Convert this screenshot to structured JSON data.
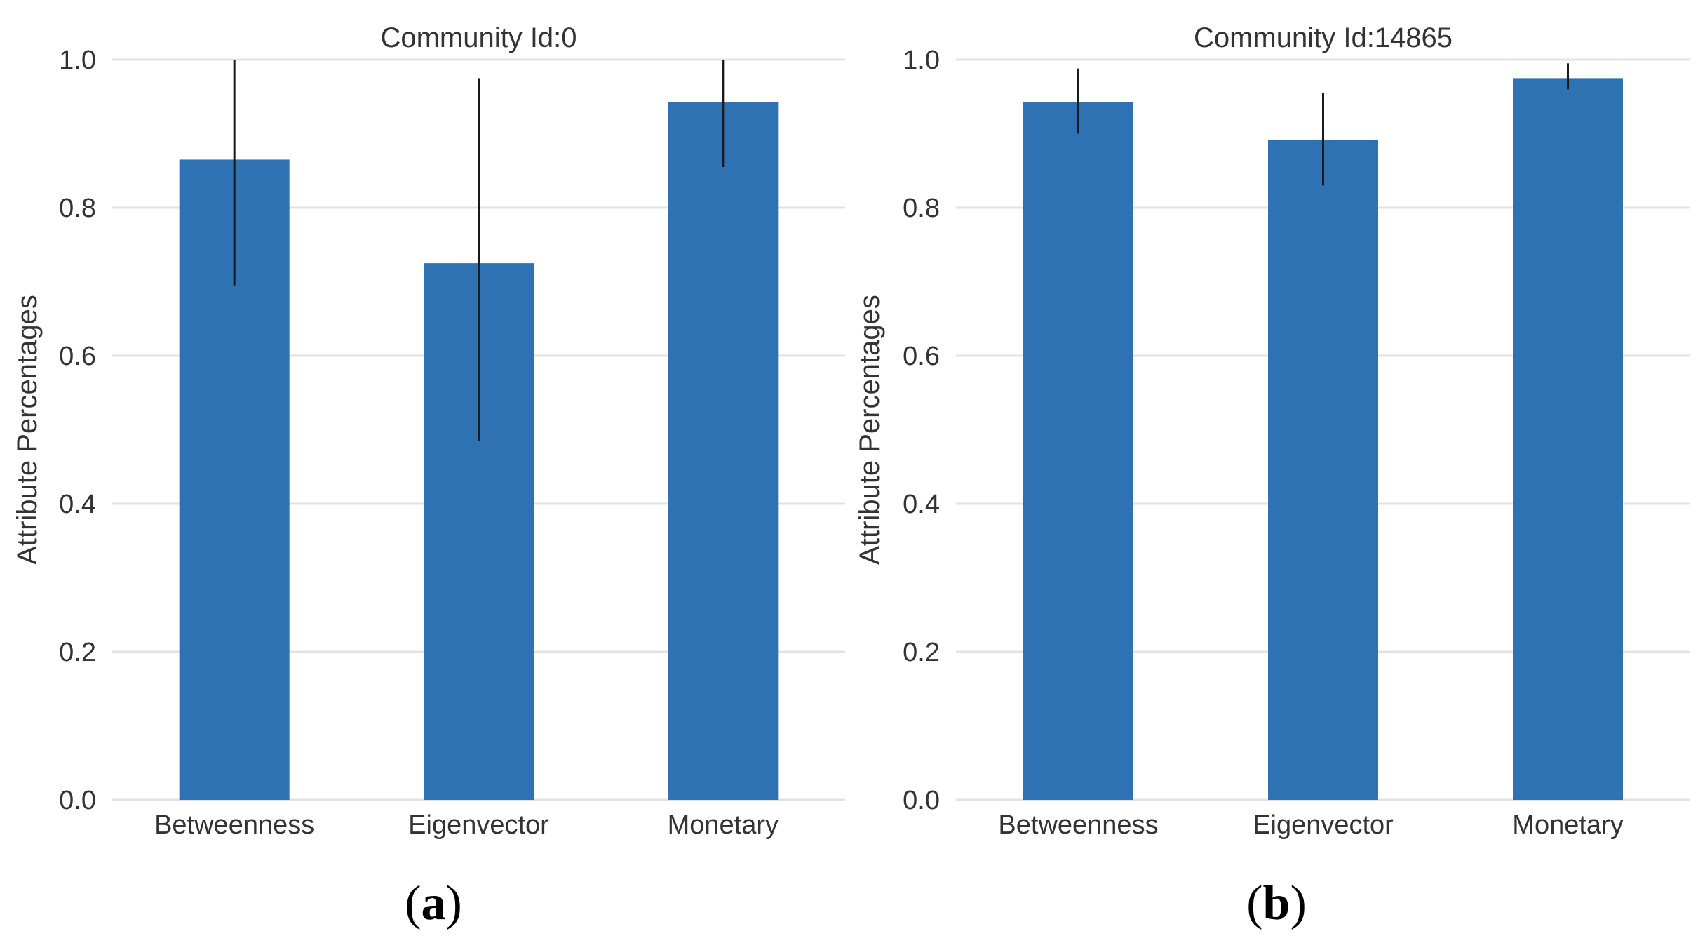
{
  "bar_color": "#2e72b3",
  "grid_color": "#e3e3e3",
  "error_color": "#1a1a1a",
  "chart_data": [
    {
      "type": "bar",
      "panel": "a",
      "title": "Community Id:0",
      "xlabel": "",
      "ylabel": "Attribute Percentages",
      "ylim": [
        0,
        1.0
      ],
      "yticks": [
        "0.0",
        "0.2",
        "0.4",
        "0.6",
        "0.8",
        "1.0"
      ],
      "categories": [
        "Betweenness",
        "Eigenvector",
        "Monetary"
      ],
      "values": [
        0.865,
        0.725,
        0.943
      ],
      "error_low": [
        0.695,
        0.485,
        0.855
      ],
      "error_high": [
        1.0,
        0.975,
        1.0
      ]
    },
    {
      "type": "bar",
      "panel": "b",
      "title": "Community Id:14865",
      "xlabel": "",
      "ylabel": "Attribute Percentages",
      "ylim": [
        0,
        1.0
      ],
      "yticks": [
        "0.0",
        "0.2",
        "0.4",
        "0.6",
        "0.8",
        "1.0"
      ],
      "categories": [
        "Betweenness",
        "Eigenvector",
        "Monetary"
      ],
      "values": [
        0.943,
        0.892,
        0.975
      ],
      "error_low": [
        0.9,
        0.83,
        0.96
      ],
      "error_high": [
        0.988,
        0.955,
        0.995
      ]
    }
  ]
}
